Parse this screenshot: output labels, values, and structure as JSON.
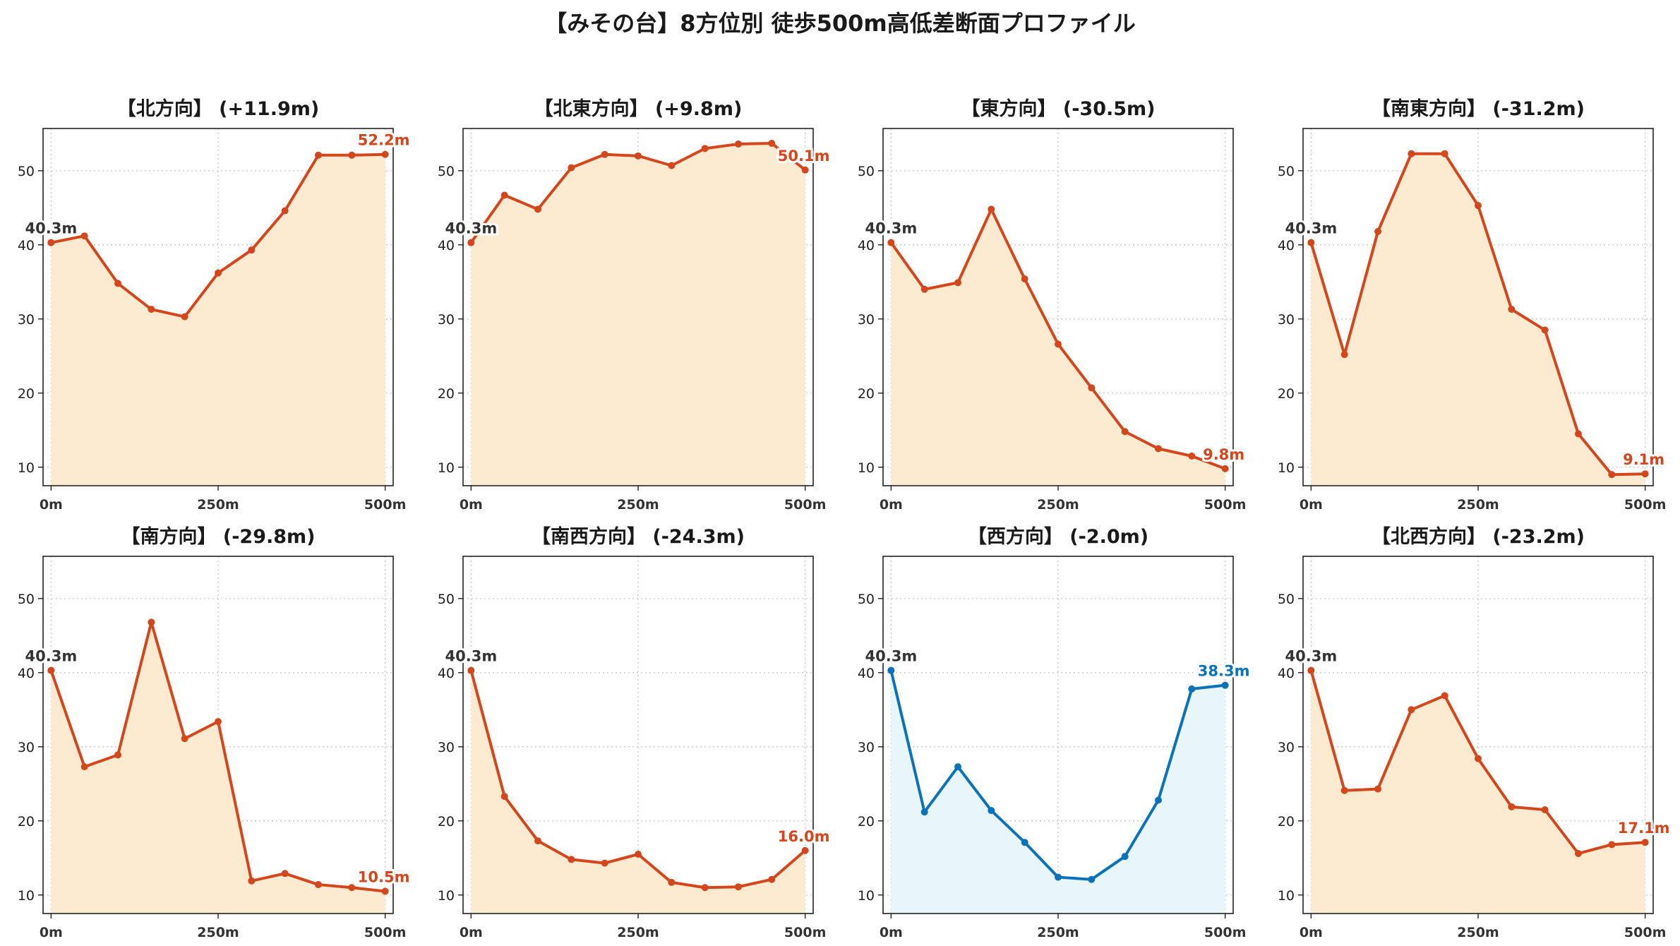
{
  "suptitle": "【みその台】8方位別 徒歩500m高低差断面プロファイル",
  "colors": {
    "down_line": "#d4461c",
    "down_fill": "#fdebd1",
    "up_line": "#0a72b8",
    "up_fill": "#e8f5fb",
    "start_label": "#333333"
  },
  "chart_data": [
    {
      "type": "line",
      "title": "【北方向】 (+11.9m)",
      "color": "down",
      "x": [
        0,
        50,
        100,
        150,
        200,
        250,
        300,
        350,
        400,
        450,
        500
      ],
      "y": [
        40.3,
        41.2,
        34.8,
        31.3,
        30.3,
        36.2,
        39.3,
        44.6,
        52.1,
        52.1,
        52.2
      ],
      "start_label": "40.3m",
      "end_label": "52.2m"
    },
    {
      "type": "line",
      "title": "【北東方向】 (+9.8m)",
      "color": "down",
      "x": [
        0,
        50,
        100,
        150,
        200,
        250,
        300,
        350,
        400,
        450,
        500
      ],
      "y": [
        40.3,
        46.7,
        44.8,
        50.4,
        52.2,
        52.0,
        50.7,
        53.0,
        53.6,
        53.7,
        50.1
      ],
      "start_label": "40.3m",
      "end_label": "50.1m"
    },
    {
      "type": "line",
      "title": "【東方向】 (-30.5m)",
      "color": "down",
      "x": [
        0,
        50,
        100,
        150,
        200,
        250,
        300,
        350,
        400,
        450,
        500
      ],
      "y": [
        40.3,
        34.0,
        34.9,
        44.8,
        35.4,
        26.6,
        20.7,
        14.8,
        12.5,
        11.5,
        9.8
      ],
      "start_label": "40.3m",
      "end_label": "9.8m"
    },
    {
      "type": "line",
      "title": "【南東方向】 (-31.2m)",
      "color": "down",
      "x": [
        0,
        50,
        100,
        150,
        200,
        250,
        300,
        350,
        400,
        450,
        500
      ],
      "y": [
        40.3,
        25.2,
        41.8,
        52.3,
        52.3,
        45.3,
        31.3,
        28.5,
        14.5,
        9.0,
        9.1
      ],
      "start_label": "40.3m",
      "end_label": "9.1m"
    },
    {
      "type": "line",
      "title": "【南方向】 (-29.8m)",
      "color": "down",
      "x": [
        0,
        50,
        100,
        150,
        200,
        250,
        300,
        350,
        400,
        450,
        500
      ],
      "y": [
        40.3,
        27.3,
        28.9,
        46.8,
        31.1,
        33.4,
        11.9,
        12.9,
        11.4,
        11.0,
        10.5
      ],
      "start_label": "40.3m",
      "end_label": "10.5m"
    },
    {
      "type": "line",
      "title": "【南西方向】 (-24.3m)",
      "color": "down",
      "x": [
        0,
        50,
        100,
        150,
        200,
        250,
        300,
        350,
        400,
        450,
        500
      ],
      "y": [
        40.3,
        23.3,
        17.3,
        14.8,
        14.3,
        15.5,
        11.7,
        11.0,
        11.1,
        12.1,
        16.0
      ],
      "start_label": "40.3m",
      "end_label": "16.0m"
    },
    {
      "type": "line",
      "title": "【西方向】 (-2.0m)",
      "color": "up",
      "x": [
        0,
        50,
        100,
        150,
        200,
        250,
        300,
        350,
        400,
        450,
        500
      ],
      "y": [
        40.3,
        21.2,
        27.3,
        21.4,
        17.1,
        12.4,
        12.1,
        15.2,
        22.8,
        37.8,
        38.3
      ],
      "start_label": "40.3m",
      "end_label": "38.3m"
    },
    {
      "type": "line",
      "title": "【北西方向】 (-23.2m)",
      "color": "down",
      "x": [
        0,
        50,
        100,
        150,
        200,
        250,
        300,
        350,
        400,
        450,
        500
      ],
      "y": [
        40.3,
        24.1,
        24.3,
        35.0,
        36.9,
        28.4,
        21.9,
        21.5,
        15.6,
        16.8,
        17.1
      ],
      "start_label": "40.3m",
      "end_label": "17.1m"
    }
  ],
  "axes": {
    "xlim": [
      -12,
      512
    ],
    "ylim": [
      7.5,
      55.7
    ],
    "yticks": [
      10,
      20,
      30,
      40,
      50
    ],
    "ytick_labels": [
      "10",
      "20",
      "30",
      "40",
      "50"
    ],
    "xticks": [
      0,
      250,
      500
    ],
    "xtick_labels": [
      "0m",
      "250m",
      "500m"
    ],
    "grid": true
  }
}
